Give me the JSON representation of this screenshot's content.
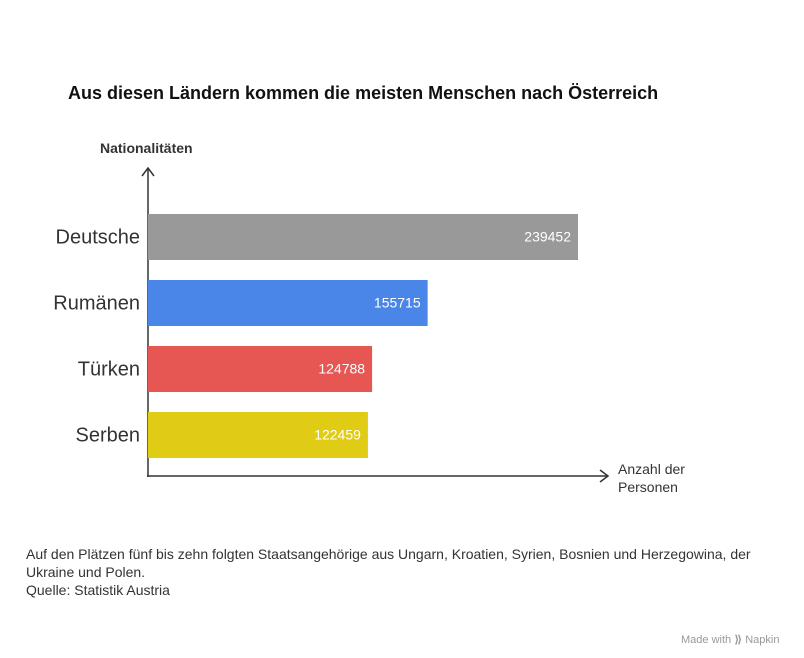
{
  "chart_data": {
    "type": "barh",
    "title": "Aus diesen Ländern kommen die meisten Menschen nach Österreich",
    "y_label": "Nationalitäten",
    "x_label": "Anzahl der Personen",
    "categories": [
      "Deutsche",
      "Rumänen",
      "Türken",
      "Serben"
    ],
    "values": [
      239452,
      155715,
      124788,
      122459
    ],
    "colors": [
      "#999999",
      "#4a86e8",
      "#e65754",
      "#e0cc14"
    ],
    "footnote": "Auf den Plätzen fünf bis zehn folgten Staatsangehörige aus Ungarn, Kroatien, Syrien, Bosnien und Herzegowina, der Ukraine und Polen.",
    "source": "Quelle: Statistik Austria",
    "watermark": {
      "prefix": "Made with",
      "brand": "Napkin"
    }
  }
}
